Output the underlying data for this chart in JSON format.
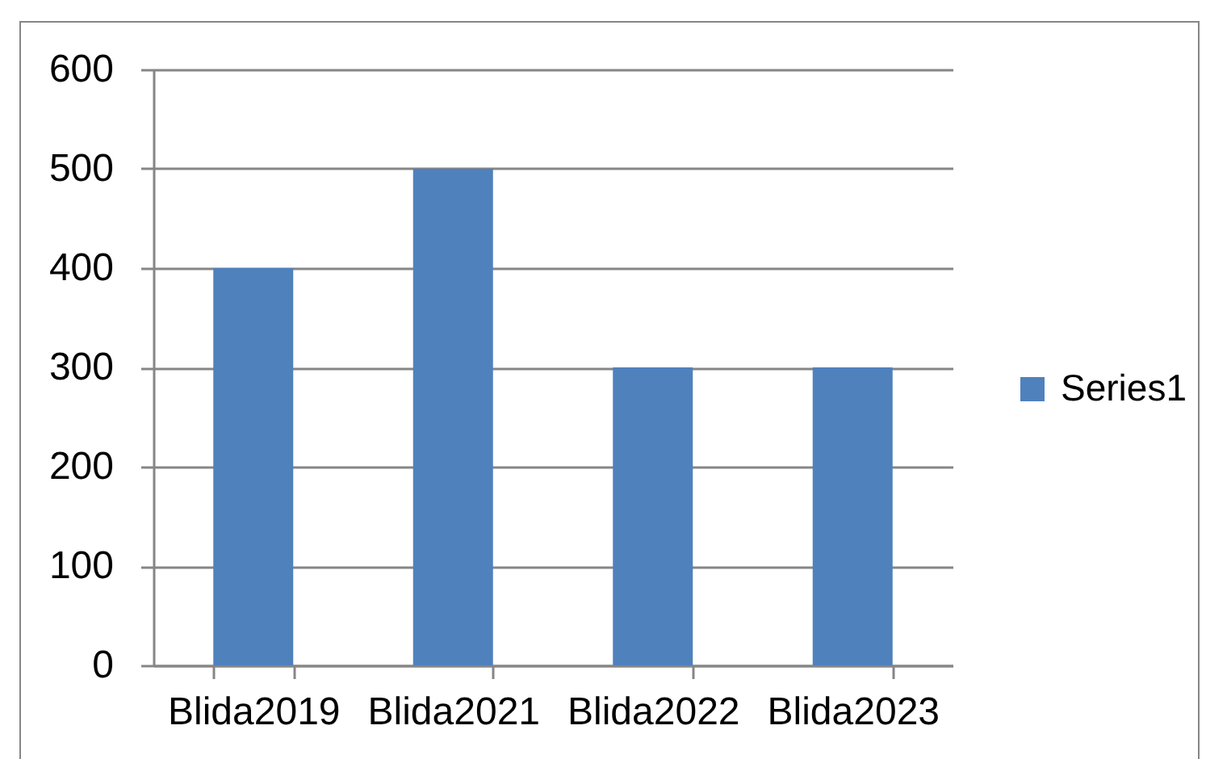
{
  "chart_data": {
    "type": "bar",
    "categories": [
      "Blida2019",
      "Blida2021",
      "Blida2022",
      "Blida2023"
    ],
    "series": [
      {
        "name": "Series1",
        "color": "#4f81bd",
        "values": [
          400,
          500,
          300,
          300
        ]
      }
    ],
    "ylim": [
      0,
      600
    ],
    "yticks": [
      0,
      100,
      200,
      300,
      400,
      500,
      600
    ],
    "grid": "y",
    "legend": "right"
  }
}
